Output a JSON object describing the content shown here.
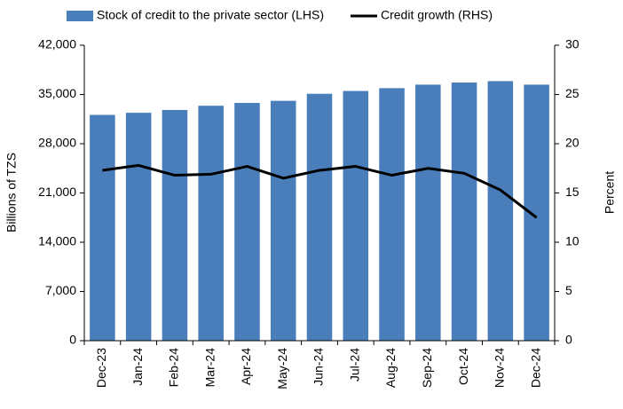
{
  "chart_data": {
    "type": "bar",
    "categories": [
      "Dec-23",
      "Jan-24",
      "Feb-24",
      "Mar-24",
      "Apr-24",
      "May-24",
      "Jun-24",
      "Jul-24",
      "Aug-24",
      "Sep-24",
      "Oct-24",
      "Nov-24",
      "Dec-24"
    ],
    "series": [
      {
        "name": "Stock of credit to the private sector (LHS)",
        "type": "bar",
        "color": "#4a7ebb",
        "values": [
          32100,
          32400,
          32800,
          33400,
          33800,
          34100,
          35100,
          35500,
          35900,
          36400,
          36700,
          36900,
          36400
        ]
      },
      {
        "name": "Credit growth (RHS)",
        "type": "line",
        "axis": "y2",
        "color": "#000000",
        "values": [
          17.3,
          17.8,
          16.8,
          16.9,
          17.7,
          16.5,
          17.3,
          17.7,
          16.8,
          17.5,
          17.0,
          15.3,
          12.5
        ]
      }
    ],
    "ylabel": "Billions of TZS",
    "y2label": "Percent",
    "ylim": [
      0,
      42000
    ],
    "yticks": [
      0,
      {
        "value": 7000,
        "label": "7,000"
      },
      {
        "value": 14000,
        "label": "14,000"
      },
      {
        "value": 21000,
        "label": "21,000"
      },
      {
        "value": 28000,
        "label": "28,000"
      },
      {
        "value": 35000,
        "label": "35,000"
      },
      {
        "value": 42000,
        "label": "42,000"
      }
    ],
    "y2lim": [
      0,
      30
    ],
    "y2ticks": [
      0,
      5,
      10,
      15,
      20,
      25,
      30
    ],
    "legend": "top"
  }
}
